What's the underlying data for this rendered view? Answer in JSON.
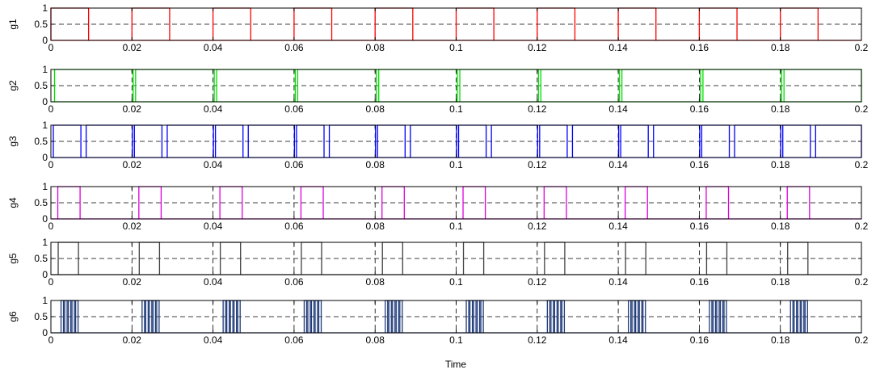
{
  "chart_data": [
    {
      "type": "line",
      "ylabel": "g1",
      "color": "#ff0000",
      "xlim": [
        0,
        0.2
      ],
      "ylim": [
        0,
        1
      ],
      "xticks": [
        "0",
        "0.02",
        "0.04",
        "0.06",
        "0.08",
        "0.1",
        "0.12",
        "0.14",
        "0.16",
        "0.18",
        "0.2"
      ],
      "yticks": [
        "0",
        "0.5",
        "1"
      ],
      "grid": true,
      "signal": {
        "period": 0.02,
        "pulses": [
          {
            "on": 0.0,
            "off": 0.0093
          }
        ]
      }
    },
    {
      "type": "line",
      "ylabel": "g2",
      "color": "#00dd00",
      "xlim": [
        0,
        0.2
      ],
      "ylim": [
        0,
        1
      ],
      "xticks": [
        "0",
        "0.02",
        "0.04",
        "0.06",
        "0.08",
        "0.1",
        "0.12",
        "0.14",
        "0.16",
        "0.18",
        "0.2"
      ],
      "yticks": [
        "0",
        "0.5",
        "1"
      ],
      "grid": true,
      "signal": {
        "period": 0.02,
        "pulses": [
          {
            "on": 0.0009,
            "off": 0.0003
          }
        ]
      }
    },
    {
      "type": "line",
      "ylabel": "g3",
      "color": "#0000ff",
      "xlim": [
        0,
        0.2
      ],
      "ylim": [
        0,
        1
      ],
      "xticks": [
        "0",
        "0.02",
        "0.04",
        "0.06",
        "0.08",
        "0.1",
        "0.12",
        "0.14",
        "0.16",
        "0.18",
        "0.2"
      ],
      "yticks": [
        "0",
        "0.5",
        "1"
      ],
      "grid": true,
      "signal": {
        "period": 0.02,
        "pulses": [
          {
            "on": 0.0006,
            "off": 0.0074
          },
          {
            "on": 0.0087,
            "off": 0.0001
          }
        ]
      }
    },
    {
      "type": "line",
      "ylabel": "g4",
      "color": "#dd00dd",
      "xlim": [
        0,
        0.2
      ],
      "ylim": [
        0,
        1
      ],
      "xticks": [
        "0",
        "0.02",
        "0.04",
        "0.06",
        "0.08",
        "0.1",
        "0.12",
        "0.14",
        "0.16",
        "0.18",
        "0.2"
      ],
      "yticks": [
        "0",
        "0.5",
        "1"
      ],
      "grid": true,
      "signal": {
        "period": 0.02,
        "pulses": [
          {
            "on": 0.0017,
            "off": 0.0072
          }
        ]
      }
    },
    {
      "type": "line",
      "ylabel": "g5",
      "color": "#404040",
      "xlim": [
        0,
        0.2
      ],
      "ylim": [
        0,
        1
      ],
      "xticks": [
        "0",
        "0.02",
        "0.04",
        "0.06",
        "0.08",
        "0.1",
        "0.12",
        "0.14",
        "0.16",
        "0.18",
        "0.2"
      ],
      "yticks": [
        "0",
        "0.5",
        "1"
      ],
      "grid": true,
      "signal": {
        "period": 0.02,
        "pulses": [
          {
            "on": 0.0018,
            "off": 0.0068
          }
        ]
      }
    },
    {
      "type": "line",
      "ylabel": "g6",
      "color": "#1f3a7a",
      "xlim": [
        0,
        0.2
      ],
      "ylim": [
        0,
        1
      ],
      "xticks": [
        "0",
        "0.02",
        "0.04",
        "0.06",
        "0.08",
        "0.1",
        "0.12",
        "0.14",
        "0.16",
        "0.18",
        "0.2"
      ],
      "yticks": [
        "0",
        "0.5",
        "1"
      ],
      "grid": true,
      "signal": {
        "period": 0.02,
        "pulses": [
          {
            "on": 0.0025,
            "off": 0.0031
          },
          {
            "on": 0.0034,
            "off": 0.004
          },
          {
            "on": 0.0043,
            "off": 0.0049
          },
          {
            "on": 0.0052,
            "off": 0.0058
          },
          {
            "on": 0.0061,
            "off": 0.0067
          }
        ]
      }
    }
  ],
  "xlabel": "Time"
}
